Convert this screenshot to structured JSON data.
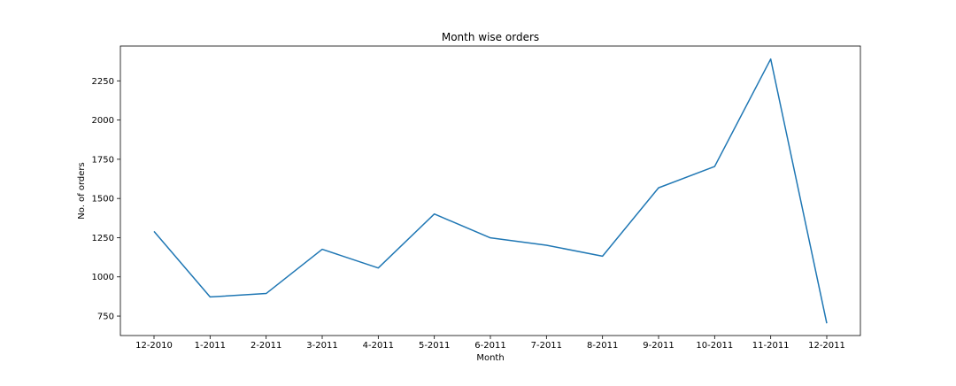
{
  "chart_data": {
    "type": "line",
    "title": "Month wise orders",
    "xlabel": "Month",
    "ylabel": "No. of orders",
    "categories": [
      "12-2010",
      "1-2011",
      "2-2011",
      "3-2011",
      "4-2011",
      "5-2011",
      "6-2011",
      "7-2011",
      "8-2011",
      "9-2011",
      "10-2011",
      "11-2011",
      "12-2011"
    ],
    "series": [
      {
        "values": [
          1290,
          872,
          894,
          1176,
          1057,
          1401,
          1249,
          1202,
          1132,
          1568,
          1704,
          2389,
          704
        ],
        "color": "#1f77b4"
      }
    ],
    "yticks": [
      750,
      1000,
      1250,
      1500,
      1750,
      2000,
      2250
    ],
    "ylim": [
      626,
      2472
    ],
    "grid": false,
    "legend": "none"
  }
}
